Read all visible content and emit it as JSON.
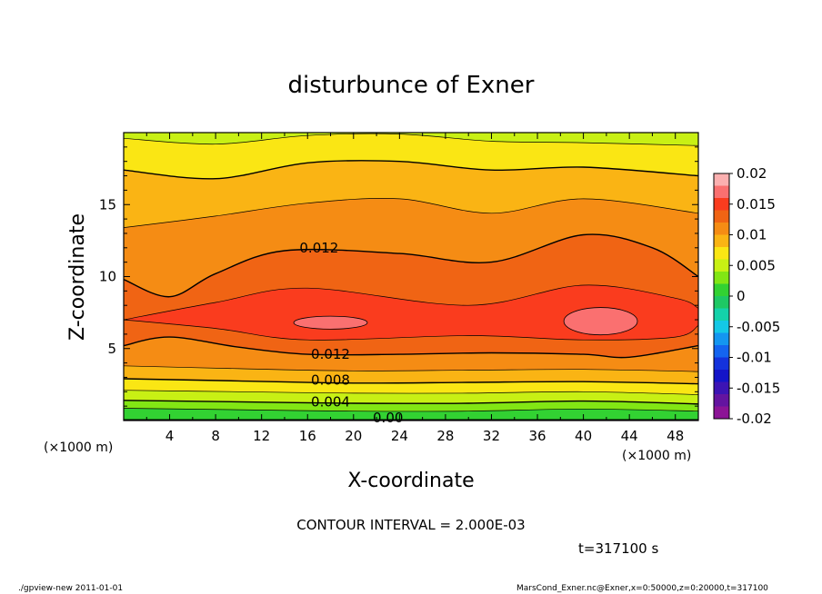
{
  "title": "disturbunce of Exner",
  "xlabel": "X-coordinate",
  "ylabel": "Z-coordinate",
  "x_unit_left": "(×1000 m)",
  "x_unit_right": "(×1000 m)",
  "contour_interval_text": "CONTOUR INTERVAL = 2.000E-03",
  "time_text": "t=317100 s",
  "footer_left": "./gpview-new  2011-01-01",
  "footer_right": "MarsCond_Exner.nc@Exner,x=0:50000,z=0:20000,t=317100",
  "chart_data": {
    "type": "heatmap",
    "title": "disturbunce of Exner",
    "xlabel": "X-coordinate",
    "ylabel": "Z-coordinate",
    "xlim": [
      0,
      50
    ],
    "ylim": [
      0,
      20
    ],
    "x_ticks": [
      4,
      8,
      12,
      16,
      20,
      24,
      28,
      32,
      36,
      40,
      44,
      48
    ],
    "y_ticks": [
      5,
      10,
      15
    ],
    "contour_interval": 0.002,
    "contour_labels": [
      {
        "text": "0.012",
        "x": 17.0,
        "z": 12.0
      },
      {
        "text": "0.012",
        "x": 18.0,
        "z": 4.6
      },
      {
        "text": "0.008",
        "x": 18.0,
        "z": 2.8
      },
      {
        "text": "0.004",
        "x": 18.0,
        "z": 1.3
      },
      {
        "text": "0.00",
        "x": 23.0,
        "z": 0.2
      }
    ],
    "colorbar": {
      "ticks": [
        "0.02",
        "0.015",
        "0.01",
        "0.005",
        "0",
        "-0.005",
        "-0.01",
        "-0.015",
        "-0.02"
      ],
      "range": [
        -0.02,
        0.02
      ],
      "colors": [
        "#fbb0b0",
        "#fa7070",
        "#fa3c1e",
        "#f06414",
        "#f58c14",
        "#fab414",
        "#fae614",
        "#c8f014",
        "#82e614",
        "#32d232",
        "#1ec864",
        "#14d2aa",
        "#14c8e6",
        "#1496f0",
        "#1464f0",
        "#1432dc",
        "#1414c8",
        "#3c14b4",
        "#6414a0",
        "#8c1496"
      ]
    },
    "grid": false,
    "legend": "colorbar-right"
  }
}
